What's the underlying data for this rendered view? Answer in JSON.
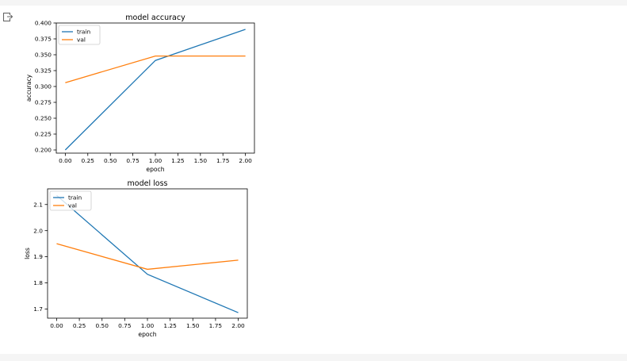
{
  "chart_data": [
    {
      "type": "line",
      "title": "model accuracy",
      "xlabel": "epoch",
      "ylabel": "accuracy",
      "x": [
        0,
        1,
        2
      ],
      "series": [
        {
          "name": "train",
          "color": "#1f77b4",
          "values": [
            0.2,
            0.341,
            0.39
          ]
        },
        {
          "name": "val",
          "color": "#ff7f0e",
          "values": [
            0.306,
            0.348,
            0.348
          ]
        }
      ],
      "xlim": [
        -0.1,
        2.1
      ],
      "ylim": [
        0.195,
        0.4
      ],
      "xticks": [
        0.0,
        0.25,
        0.5,
        0.75,
        1.0,
        1.25,
        1.5,
        1.75,
        2.0
      ],
      "xtick_labels": [
        "0.00",
        "0.25",
        "0.50",
        "0.75",
        "1.00",
        "1.25",
        "1.50",
        "1.75",
        "2.00"
      ],
      "yticks": [
        0.2,
        0.225,
        0.25,
        0.275,
        0.3,
        0.325,
        0.35,
        0.375,
        0.4
      ],
      "ytick_labels": [
        "0.200",
        "0.225",
        "0.250",
        "0.275",
        "0.300",
        "0.325",
        "0.350",
        "0.375",
        "0.400"
      ],
      "legend": "upper-left",
      "grid": false
    },
    {
      "type": "line",
      "title": "model loss",
      "xlabel": "epoch",
      "ylabel": "loss",
      "x": [
        0,
        1,
        2
      ],
      "series": [
        {
          "name": "train",
          "color": "#1f77b4",
          "values": [
            2.135,
            1.833,
            1.686
          ]
        },
        {
          "name": "val",
          "color": "#ff7f0e",
          "values": [
            1.95,
            1.852,
            1.887
          ]
        }
      ],
      "xlim": [
        -0.1,
        2.1
      ],
      "ylim": [
        1.665,
        2.16
      ],
      "xticks": [
        0.0,
        0.25,
        0.5,
        0.75,
        1.0,
        1.25,
        1.5,
        1.75,
        2.0
      ],
      "xtick_labels": [
        "0.00",
        "0.25",
        "0.50",
        "0.75",
        "1.00",
        "1.25",
        "1.50",
        "1.75",
        "2.00"
      ],
      "yticks": [
        1.7,
        1.8,
        1.9,
        2.0,
        2.1
      ],
      "ytick_labels": [
        "1.7",
        "1.8",
        "1.9",
        "2.0",
        "2.1"
      ],
      "legend": "upper-left",
      "grid": false
    }
  ]
}
